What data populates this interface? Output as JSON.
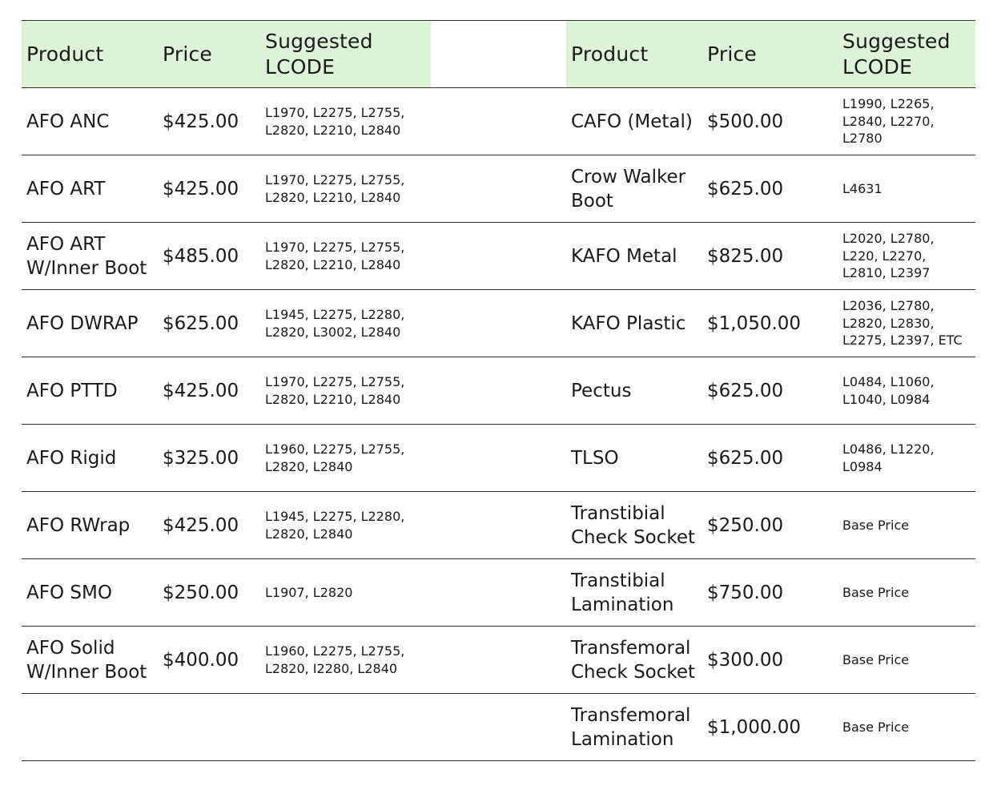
{
  "headers": {
    "left_product": "Product",
    "left_price": "Price",
    "left_lcode": "Suggested LCODE",
    "right_product": "Product",
    "right_price": "Price",
    "right_lcode": "Suggested LCODE"
  },
  "rows": [
    {
      "left_product": "AFO ANC",
      "left_price": "$425.00",
      "left_lcode": "L1970, L2275, L2755, L2820, L2210, L2840",
      "right_product": "CAFO (Metal)",
      "right_price": "$500.00",
      "right_lcode": "L1990, L2265, L2840, L2270, L2780"
    },
    {
      "left_product": "AFO ART",
      "left_price": "$425.00",
      "left_lcode": "L1970, L2275, L2755, L2820, L2210, L2840",
      "right_product": "Crow Walker Boot",
      "right_price": "$625.00",
      "right_lcode": "L4631"
    },
    {
      "left_product": "AFO ART W/Inner Boot",
      "left_price": "$485.00",
      "left_lcode": "L1970, L2275, L2755, L2820, L2210, L2840",
      "right_product": "KAFO Metal",
      "right_price": "$825.00",
      "right_lcode": "L2020, L2780, L220, L2270, L2810, L2397"
    },
    {
      "left_product": "AFO DWRAP",
      "left_price": "$625.00",
      "left_lcode": "L1945, L2275, L2280, L2820, L3002, L2840",
      "right_product": "KAFO Plastic",
      "right_price": "$1,050.00",
      "right_lcode": "L2036, L2780, L2820, L2830, L2275, L2397, ETC"
    },
    {
      "left_product": "AFO PTTD",
      "left_price": "$425.00",
      "left_lcode": "L1970, L2275, L2755, L2820, L2210, L2840",
      "right_product": "Pectus",
      "right_price": "$625.00",
      "right_lcode": "L0484, L1060, L1040, L0984"
    },
    {
      "left_product": "AFO Rigid",
      "left_price": "$325.00",
      "left_lcode": "L1960, L2275, L2755, L2820, L2840",
      "right_product": "TLSO",
      "right_price": "$625.00",
      "right_lcode": "L0486, L1220, L0984"
    },
    {
      "left_product": "AFO RWrap",
      "left_price": "$425.00",
      "left_lcode": "L1945, L2275, L2280, L2820, L2840",
      "right_product": "Transtibial Check Socket",
      "right_price": "$250.00",
      "right_lcode": "Base Price"
    },
    {
      "left_product": "AFO SMO",
      "left_price": "$250.00",
      "left_lcode": "L1907, L2820",
      "right_product": "Transtibial Lamination",
      "right_price": "$750.00",
      "right_lcode": "Base Price"
    },
    {
      "left_product": "AFO Solid W/Inner Boot",
      "left_price": "$400.00",
      "left_lcode": "L1960, L2275, L2755, L2820, I2280, L2840",
      "right_product": "Transfemoral Check Socket",
      "right_price": "$300.00",
      "right_lcode": "Base Price"
    },
    {
      "left_product": "",
      "left_price": "",
      "left_lcode": "",
      "right_product": "Transfemoral Lamination",
      "right_price": "$1,000.00",
      "right_lcode": "Base Price"
    }
  ]
}
